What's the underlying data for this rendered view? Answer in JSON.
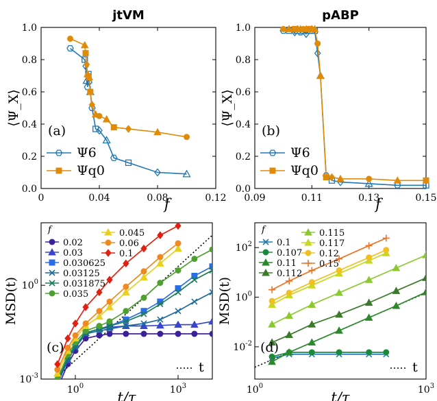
{
  "panel_titles": {
    "top_left": "jtVM",
    "top_right": "pABP"
  },
  "panel_labels": {
    "a": "(a)",
    "b": "(b)",
    "c": "(c)",
    "d": "(d)"
  },
  "colors": {
    "psi6": "#1f77b4",
    "psiq": "#e08a0a",
    "reference": "#000000"
  },
  "icons": {
    "psi6": "hexagon-marker-icon",
    "psiq": "square-marker-icon"
  },
  "chart_data": [
    {
      "id": "a",
      "type": "line",
      "title": "jtVM",
      "xlabel": "f",
      "ylabel": "⟨Ψ_X⟩",
      "xlim": [
        0,
        0.12
      ],
      "ylim": [
        0,
        1.0
      ],
      "xticks": [
        "0",
        "0.04",
        "0.08",
        "0.12"
      ],
      "yticks": [
        "0.0",
        "0.2",
        "0.4",
        "0.6",
        "0.8",
        "1.0"
      ],
      "legend": {
        "location": "lower-left",
        "entries": [
          "Ψ6",
          "Ψq0"
        ]
      },
      "series": [
        {
          "name": "Ψ6",
          "color": "#1f77b4",
          "x": [
            0.02,
            0.03,
            0.0306,
            0.0313,
            0.0319,
            0.0325,
            0.0331,
            0.0338,
            0.035,
            0.0375,
            0.04,
            0.045,
            0.05,
            0.06,
            0.08,
            0.1
          ],
          "y": [
            0.87,
            0.8,
            0.76,
            0.67,
            0.63,
            0.71,
            0.66,
            0.6,
            0.5,
            0.37,
            0.36,
            0.3,
            0.19,
            0.16,
            0.1,
            0.09
          ]
        },
        {
          "name": "Ψq0",
          "color": "#e08a0a",
          "x": [
            0.02,
            0.03,
            0.0306,
            0.0313,
            0.0319,
            0.0325,
            0.0331,
            0.0338,
            0.035,
            0.0375,
            0.04,
            0.045,
            0.05,
            0.06,
            0.08,
            0.1
          ],
          "y": [
            0.93,
            0.89,
            0.84,
            0.77,
            0.71,
            0.7,
            0.69,
            0.6,
            0.52,
            0.46,
            0.45,
            0.43,
            0.38,
            0.37,
            0.35,
            0.32
          ]
        }
      ]
    },
    {
      "id": "b",
      "type": "line",
      "title": "pABP",
      "xlabel": "f",
      "ylabel": "⟨Ψ_X⟩",
      "xlim": [
        0.09,
        0.15
      ],
      "ylim": [
        0,
        1.0
      ],
      "xticks": [
        "0.09",
        "0.11",
        "0.13",
        "0.15"
      ],
      "yticks": [
        "0.0",
        "0.2",
        "0.4",
        "0.6",
        "0.8",
        "1.0"
      ],
      "legend": {
        "location": "lower-left",
        "entries": [
          "Ψ6",
          "Ψq0"
        ]
      },
      "series": [
        {
          "name": "Ψ6",
          "color": "#1f77b4",
          "x": [
            0.1,
            0.102,
            0.104,
            0.105,
            0.106,
            0.107,
            0.108,
            0.109,
            0.11,
            0.111,
            0.112,
            0.113,
            0.115,
            0.117,
            0.12,
            0.13,
            0.14,
            0.15
          ],
          "y": [
            0.98,
            0.98,
            0.97,
            0.98,
            0.97,
            0.98,
            0.96,
            0.98,
            0.98,
            0.98,
            0.84,
            0.7,
            0.08,
            0.05,
            0.04,
            0.03,
            0.02,
            0.02
          ]
        },
        {
          "name": "Ψq0",
          "color": "#e08a0a",
          "x": [
            0.1,
            0.102,
            0.104,
            0.105,
            0.106,
            0.107,
            0.108,
            0.109,
            0.11,
            0.111,
            0.112,
            0.113,
            0.115,
            0.117,
            0.12,
            0.13,
            0.14,
            0.15
          ],
          "y": [
            0.99,
            0.99,
            0.99,
            0.99,
            0.99,
            0.99,
            0.99,
            0.99,
            0.99,
            0.99,
            0.9,
            0.7,
            0.07,
            0.07,
            0.06,
            0.06,
            0.05,
            0.05
          ]
        }
      ]
    },
    {
      "id": "c",
      "type": "line",
      "xlabel": "t/τ",
      "ylabel": "MSD(t)",
      "xscale": "log",
      "yscale": "log",
      "xlim": [
        0.1,
        10000
      ],
      "ylim": [
        0.001,
        100
      ],
      "xticks": [
        "10^0",
        "10^3"
      ],
      "yticks": [
        "10^-3",
        "10^0"
      ],
      "legend_title": "f",
      "legend": {
        "location": "top-left",
        "columns": 2
      },
      "reference_line": {
        "label": "t",
        "style": "dotted",
        "x": [
          0.1,
          10000
        ],
        "y": [
          0.0004,
          40
        ]
      },
      "series": [
        {
          "name": "0.02",
          "color": "#3b2099",
          "marker": "circle",
          "x": [
            0.3,
            0.6,
            1,
            2,
            5,
            10,
            30,
            100,
            300,
            1000,
            3000,
            10000
          ],
          "y": [
            0.0005,
            0.003,
            0.008,
            0.02,
            0.025,
            0.028,
            0.028,
            0.028,
            0.028,
            0.028,
            0.028,
            0.028
          ]
        },
        {
          "name": "0.03",
          "color": "#3845d0",
          "marker": "triangle",
          "x": [
            0.3,
            0.6,
            1,
            2,
            5,
            10,
            30,
            100,
            300,
            1000,
            3000,
            10000
          ],
          "y": [
            0.0007,
            0.004,
            0.012,
            0.03,
            0.04,
            0.045,
            0.05,
            0.05,
            0.052,
            0.055,
            0.055,
            0.07
          ]
        },
        {
          "name": "0.030625",
          "color": "#2a6de8",
          "marker": "square",
          "x": [
            0.3,
            0.6,
            1,
            2,
            5,
            10,
            30,
            100,
            300,
            1000,
            3000,
            10000
          ],
          "y": [
            0.0008,
            0.005,
            0.012,
            0.03,
            0.04,
            0.05,
            0.08,
            0.15,
            0.3,
            0.8,
            2,
            4
          ]
        },
        {
          "name": "0.03125",
          "color": "#1a6a9a",
          "marker": "x",
          "x": [
            0.3,
            0.6,
            1,
            2,
            5,
            10,
            30,
            100,
            300,
            1000,
            3000,
            10000
          ],
          "y": [
            0.0007,
            0.004,
            0.01,
            0.028,
            0.035,
            0.04,
            0.05,
            0.06,
            0.08,
            0.15,
            0.3,
            0.6
          ]
        },
        {
          "name": "0.031875",
          "color": "#1a7a5a",
          "marker": "x",
          "x": [
            0.3,
            0.6,
            1,
            2,
            5,
            10,
            30,
            100,
            300,
            1000,
            3000,
            10000
          ],
          "y": [
            0.0008,
            0.005,
            0.012,
            0.03,
            0.04,
            0.05,
            0.07,
            0.12,
            0.25,
            0.6,
            1.5,
            3
          ]
        },
        {
          "name": "0.035",
          "color": "#4ea030",
          "marker": "circle",
          "x": [
            0.3,
            0.6,
            1,
            2,
            5,
            10,
            30,
            100,
            300,
            1000,
            3000,
            10000
          ],
          "y": [
            0.001,
            0.006,
            0.015,
            0.035,
            0.05,
            0.07,
            0.15,
            0.4,
            1.2,
            3,
            7,
            14
          ]
        },
        {
          "name": "0.045",
          "color": "#e8d020",
          "marker": "triangle",
          "x": [
            0.3,
            0.6,
            1,
            2,
            5,
            10,
            30,
            100,
            300,
            1000
          ],
          "y": [
            0.0015,
            0.008,
            0.02,
            0.05,
            0.1,
            0.2,
            0.6,
            1.8,
            5,
            15
          ]
        },
        {
          "name": "0.06",
          "color": "#f08a20",
          "marker": "circle",
          "x": [
            0.3,
            0.6,
            1,
            2,
            5,
            10,
            30,
            100,
            300,
            1000
          ],
          "y": [
            0.002,
            0.01,
            0.025,
            0.06,
            0.15,
            0.3,
            0.9,
            2.8,
            8,
            22
          ]
        },
        {
          "name": "0.1",
          "color": "#e02010",
          "marker": "diamond",
          "x": [
            0.3,
            0.6,
            1,
            2,
            5,
            10,
            30,
            100,
            300,
            1000
          ],
          "y": [
            0.003,
            0.02,
            0.06,
            0.2,
            0.6,
            1.5,
            5,
            15,
            40,
            80
          ]
        }
      ]
    },
    {
      "id": "d",
      "type": "line",
      "xlabel": "t/τ",
      "ylabel": "MSD(t)",
      "xscale": "log",
      "yscale": "log",
      "xlim": [
        1,
        1000
      ],
      "ylim": [
        0.0005,
        1000
      ],
      "xticks": [
        "10^0",
        "10^3"
      ],
      "yticks": [
        "10^-2",
        "10^0",
        "10^2"
      ],
      "legend_title": "f",
      "legend": {
        "location": "top-left",
        "columns": 2
      },
      "reference_line": {
        "label": "t",
        "style": "dotted",
        "x": [
          1,
          1000
        ],
        "y": [
          0.0015,
          1.5
        ]
      },
      "series": [
        {
          "name": "0.1",
          "color": "#1f77b4",
          "marker": "x",
          "x": [
            2,
            4,
            10,
            30,
            100,
            200
          ],
          "y": [
            0.0035,
            0.005,
            0.005,
            0.005,
            0.005,
            0.005
          ]
        },
        {
          "name": "0.107",
          "color": "#1a8a3a",
          "marker": "circle",
          "x": [
            2,
            4,
            10,
            30,
            100,
            200
          ],
          "y": [
            0.004,
            0.006,
            0.006,
            0.006,
            0.006,
            0.006
          ]
        },
        {
          "name": "0.11",
          "color": "#2a8a2a",
          "marker": "triangle",
          "x": [
            2,
            4,
            10,
            30,
            100,
            300,
            1000
          ],
          "y": [
            0.0025,
            0.006,
            0.015,
            0.045,
            0.15,
            0.45,
            1.6
          ]
        },
        {
          "name": "0.112",
          "color": "#3a7a2a",
          "marker": "triangle",
          "x": [
            2,
            4,
            10,
            30,
            100,
            300,
            1000
          ],
          "y": [
            0.015,
            0.03,
            0.08,
            0.2,
            0.6,
            1.8,
            6
          ]
        },
        {
          "name": "0.115",
          "color": "#8cc830",
          "marker": "triangle",
          "x": [
            2,
            4,
            10,
            30,
            100,
            300,
            1000
          ],
          "y": [
            0.08,
            0.18,
            0.5,
            1.5,
            5,
            15,
            50
          ]
        },
        {
          "name": "0.117",
          "color": "#c8d820",
          "marker": "triangle",
          "x": [
            2,
            4,
            10,
            30,
            100,
            200
          ],
          "y": [
            0.5,
            1.2,
            3,
            9,
            30,
            60
          ]
        },
        {
          "name": "0.12",
          "color": "#f0c020",
          "marker": "circle",
          "x": [
            2,
            4,
            10,
            30,
            100,
            200
          ],
          "y": [
            0.7,
            1.5,
            4,
            12,
            40,
            80
          ]
        },
        {
          "name": "0.15",
          "color": "#f07020",
          "marker": "plus",
          "x": [
            2,
            4,
            10,
            30,
            100,
            200
          ],
          "y": [
            2,
            4.5,
            12,
            35,
            120,
            240
          ]
        }
      ]
    }
  ]
}
